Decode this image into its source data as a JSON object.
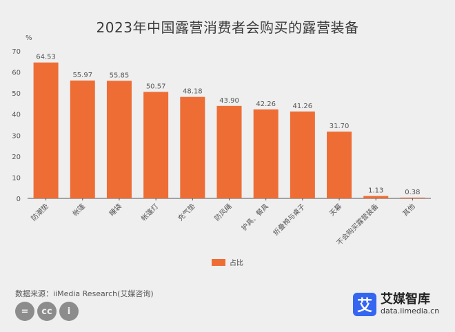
{
  "title": "2023年中国露营消费者会购买的露营装备",
  "legend_label": "占比",
  "source": "数据来源：iiMedia Research(艾媒咨询)",
  "brand": {
    "logo_char": "艾",
    "name": "艾媒智库",
    "url": "data.iimedia.cn"
  },
  "colors": {
    "bar": "#ed6d35"
  },
  "chart_data": {
    "type": "bar",
    "title": "2023年中国露营消费者会购买的露营装备",
    "ylabel": "%",
    "ylim": [
      0,
      70
    ],
    "yticks": [
      0,
      10,
      20,
      30,
      40,
      50,
      60,
      70
    ],
    "categories": [
      "防潮垫",
      "帐篷",
      "睡袋",
      "帐篷灯",
      "充气垫",
      "防风绳",
      "护具、餐具",
      "折叠椅与桌子",
      "天幕",
      "不会购买露营装备",
      "其他"
    ],
    "series": [
      {
        "name": "占比",
        "values": [
          64.53,
          55.97,
          55.85,
          50.57,
          48.18,
          43.9,
          42.26,
          41.26,
          31.7,
          1.13,
          0.38
        ],
        "labels": [
          "64.53",
          "55.97",
          "55.85",
          "50.57",
          "48.18",
          "43.90",
          "42.26",
          "41.26",
          "31.70",
          "1.13",
          "0.38"
        ]
      }
    ],
    "legend": "bottom-center",
    "grid": false
  }
}
